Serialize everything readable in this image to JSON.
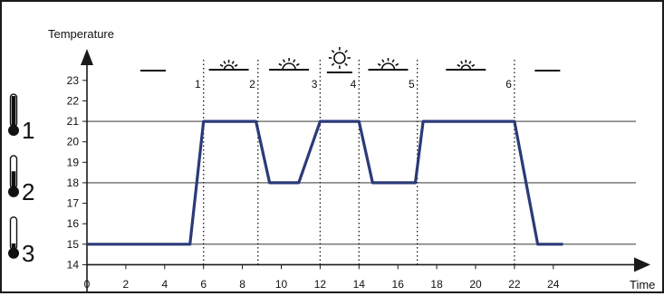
{
  "chart_data": {
    "type": "line",
    "xlabel": "Time",
    "ylabel": "Temperature",
    "xlim": [
      0,
      25
    ],
    "ylim": [
      14,
      23
    ],
    "x_ticks": [
      0,
      2,
      4,
      6,
      8,
      10,
      12,
      14,
      16,
      18,
      20,
      22,
      24
    ],
    "y_ticks": [
      14,
      15,
      16,
      17,
      18,
      19,
      20,
      21,
      22,
      23
    ],
    "grid": "horizontal lines at 15, 18 and 21",
    "series": [
      {
        "color": "#2b3a78",
        "points": [
          [
            0,
            15
          ],
          [
            5.3,
            15
          ],
          [
            6,
            21
          ],
          [
            8.7,
            21
          ],
          [
            9.4,
            18
          ],
          [
            10.9,
            18
          ],
          [
            12,
            21
          ],
          [
            14,
            21
          ],
          [
            14.7,
            18
          ],
          [
            16.9,
            18
          ],
          [
            17.3,
            21
          ],
          [
            22,
            21
          ],
          [
            23.2,
            15
          ],
          [
            24.5,
            15
          ]
        ]
      }
    ],
    "reference_lines": [
      15,
      18,
      21
    ],
    "markers": [
      {
        "label": "1",
        "x": 6
      },
      {
        "label": "2",
        "x": 8.8
      },
      {
        "label": "3",
        "x": 12
      },
      {
        "label": "4",
        "x": 14
      },
      {
        "label": "5",
        "x": 17
      },
      {
        "label": "6",
        "x": 22
      }
    ],
    "period_icons": [
      {
        "icon": "moon-icon",
        "x": 3.4
      },
      {
        "icon": "setting-sun-icon",
        "x": 7.3
      },
      {
        "icon": "half-sun-icon",
        "x": 10.4
      },
      {
        "icon": "full-sun-icon",
        "x": 13
      },
      {
        "icon": "half-sun-icon",
        "x": 15.5
      },
      {
        "icon": "setting-sun-icon",
        "x": 19.5
      },
      {
        "icon": "moon-icon",
        "x": 23.7
      }
    ],
    "levels": [
      {
        "label": "1",
        "y": 21,
        "icon": "thermometer-high-icon"
      },
      {
        "label": "2",
        "y": 18,
        "icon": "thermometer-medium-icon"
      },
      {
        "label": "3",
        "y": 15,
        "icon": "thermometer-low-icon"
      }
    ]
  }
}
